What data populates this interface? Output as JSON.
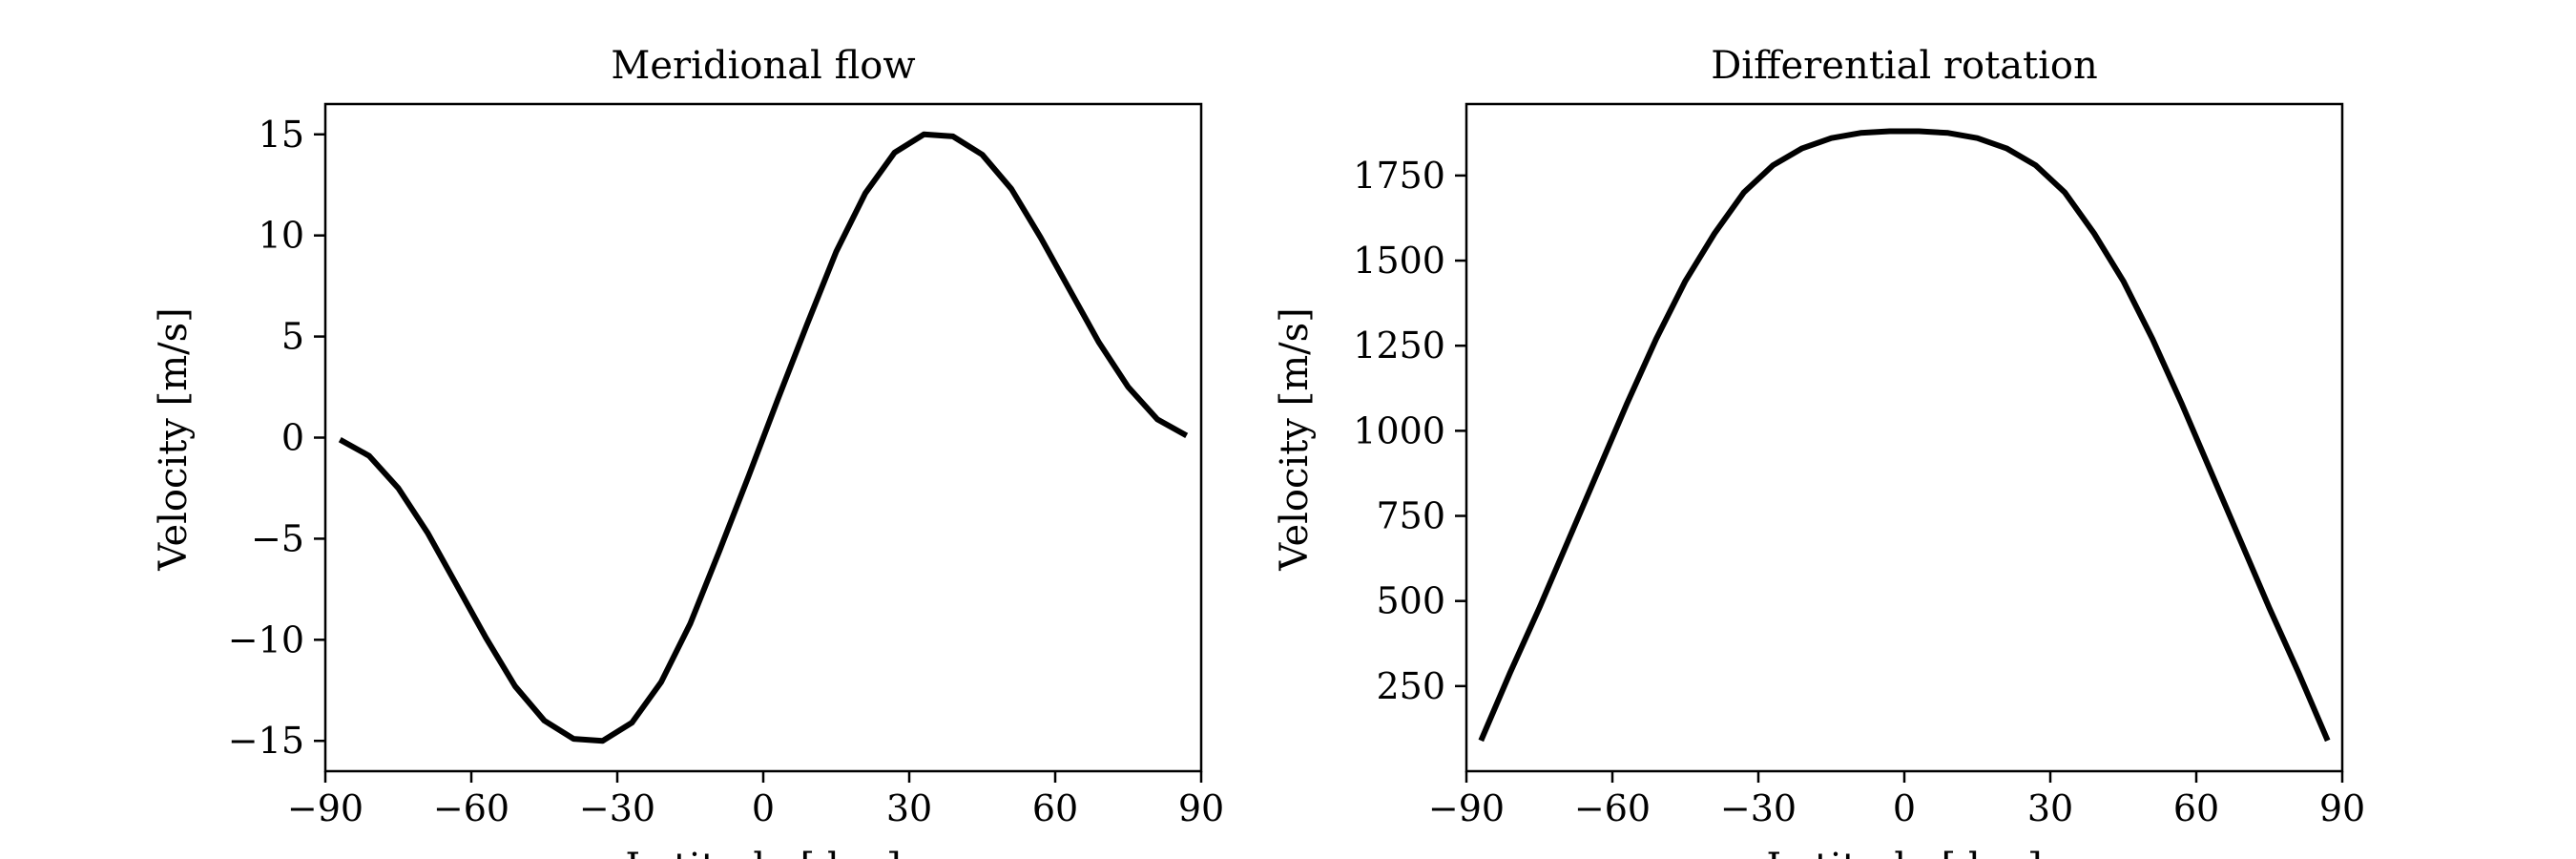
{
  "chart_data": [
    {
      "type": "line",
      "title": "Meridional flow",
      "xlabel": "Latitude [deg]",
      "ylabel": "Velocity [m/s]",
      "xlim": [
        -90,
        90
      ],
      "ylim": [
        -16.5,
        16.5
      ],
      "xticks": [
        -90,
        -60,
        -30,
        0,
        30,
        60,
        90
      ],
      "xtick_labels": [
        "−90",
        "−60",
        "−30",
        "0",
        "30",
        "60",
        "90"
      ],
      "yticks": [
        -15,
        -10,
        -5,
        0,
        5,
        10,
        15
      ],
      "ytick_labels": [
        "−15",
        "−10",
        "−5",
        "0",
        "5",
        "10",
        "15"
      ],
      "grid": false,
      "line_color": "#000000",
      "series": [
        {
          "x": [
            -87,
            -81,
            -75,
            -69,
            -63,
            -57,
            -51,
            -45,
            -39,
            -33,
            -27,
            -21,
            -15,
            -9,
            -3,
            3,
            9,
            15,
            21,
            27,
            33,
            39,
            45,
            51,
            57,
            63,
            69,
            75,
            81,
            87
          ],
          "y": [
            -0.1,
            -0.9,
            -2.5,
            -4.7,
            -7.3,
            -9.9,
            -12.3,
            -14.0,
            -14.9,
            -15.0,
            -14.1,
            -12.1,
            -9.2,
            -5.6,
            -1.9,
            1.9,
            5.6,
            9.2,
            12.1,
            14.1,
            15.0,
            14.9,
            14.0,
            12.3,
            9.9,
            7.3,
            4.7,
            2.5,
            0.9,
            0.1
          ]
        }
      ]
    },
    {
      "type": "line",
      "title": "Differential rotation",
      "xlabel": "Latitude [deg]",
      "ylabel": "Velocity [m/s]",
      "xlim": [
        -90,
        90
      ],
      "ylim": [
        0,
        1960
      ],
      "xticks": [
        -90,
        -60,
        -30,
        0,
        30,
        60,
        90
      ],
      "xtick_labels": [
        "−90",
        "−60",
        "−30",
        "0",
        "30",
        "60",
        "90"
      ],
      "yticks": [
        250,
        500,
        750,
        1000,
        1250,
        1500,
        1750
      ],
      "ytick_labels": [
        "250",
        "500",
        "750",
        "1000",
        "1250",
        "1500",
        "1750"
      ],
      "grid": false,
      "line_color": "#000000",
      "series": [
        {
          "x": [
            -87,
            -81,
            -75,
            -69,
            -63,
            -57,
            -51,
            -45,
            -39,
            -33,
            -27,
            -21,
            -15,
            -9,
            -3,
            3,
            9,
            15,
            21,
            27,
            33,
            39,
            45,
            51,
            57,
            63,
            69,
            75,
            81,
            87
          ],
          "y": [
            90,
            290,
            480,
            680,
            880,
            1080,
            1270,
            1440,
            1580,
            1700,
            1780,
            1830,
            1860,
            1875,
            1880,
            1880,
            1875,
            1860,
            1830,
            1780,
            1700,
            1580,
            1440,
            1270,
            1080,
            880,
            680,
            480,
            290,
            90
          ]
        }
      ]
    }
  ]
}
